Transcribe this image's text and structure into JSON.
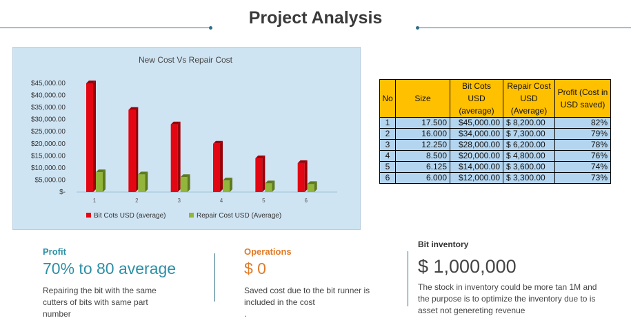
{
  "page": {
    "title": "Project Analysis"
  },
  "chart_data": {
    "type": "bar",
    "title": "New Cost Vs Repair Cost",
    "categories": [
      "1",
      "2",
      "3",
      "4",
      "5",
      "6"
    ],
    "series": [
      {
        "name": "Bit Cots USD  (average)",
        "color": "#e30613",
        "values": [
          45000,
          34000,
          28000,
          20000,
          14000,
          12000
        ]
      },
      {
        "name": "Repair Cost USD  (Average)",
        "color": "#92b53c",
        "values": [
          8200,
          7300,
          6200,
          4800,
          3600,
          3300
        ]
      }
    ],
    "y_ticks": [
      "$-",
      "$5,000.00",
      "$10,000.00",
      "$15,000.00",
      "$20,000.00",
      "$25,000.00",
      "$30,000.00",
      "$35,000.00",
      "$40,000.00",
      "$45,000.00"
    ],
    "ylim": [
      0,
      45000
    ],
    "legend": "bottom",
    "background": "#cfe4f3"
  },
  "table": {
    "headers": [
      "No",
      "Size",
      "Bit Cots USD (average)",
      "Repair Cost USD (Average)",
      "Profit (Cost in USD saved)"
    ],
    "rows": [
      [
        "1",
        "17.500",
        "$45,000.00",
        "$  8,200.00",
        "82%"
      ],
      [
        "2",
        "16.000",
        "$34,000.00",
        "$  7,300.00",
        "79%"
      ],
      [
        "3",
        "12.250",
        "$28,000.00",
        "$  6,200.00",
        "78%"
      ],
      [
        "4",
        "8.500",
        "$20,000.00",
        "$  4,800.00",
        "76%"
      ],
      [
        "5",
        "6.125",
        "$14,000.00",
        "$  3,600.00",
        "74%"
      ],
      [
        "6",
        "6.000",
        "$12,000.00",
        "$  3,300.00",
        "73%"
      ]
    ]
  },
  "kpis": {
    "profit": {
      "heading": "Profit",
      "value": "70% to 80 average",
      "description": "Repairing the bit with the same cutters of bits with same part number",
      "color": "#2c8fa6"
    },
    "operations": {
      "heading": "Operations",
      "value": "$ 0",
      "description": "Saved cost due to the bit runner is included in the cost",
      "extra": ".",
      "color": "#e07b28"
    },
    "inventory": {
      "heading": "Bit inventory",
      "value": "$ 1,000,000",
      "description": "The stock in inventory could be more tan 1M and the purpose is to optimize the inventory due to is asset not genereting revenue",
      "color": "#333333"
    }
  }
}
